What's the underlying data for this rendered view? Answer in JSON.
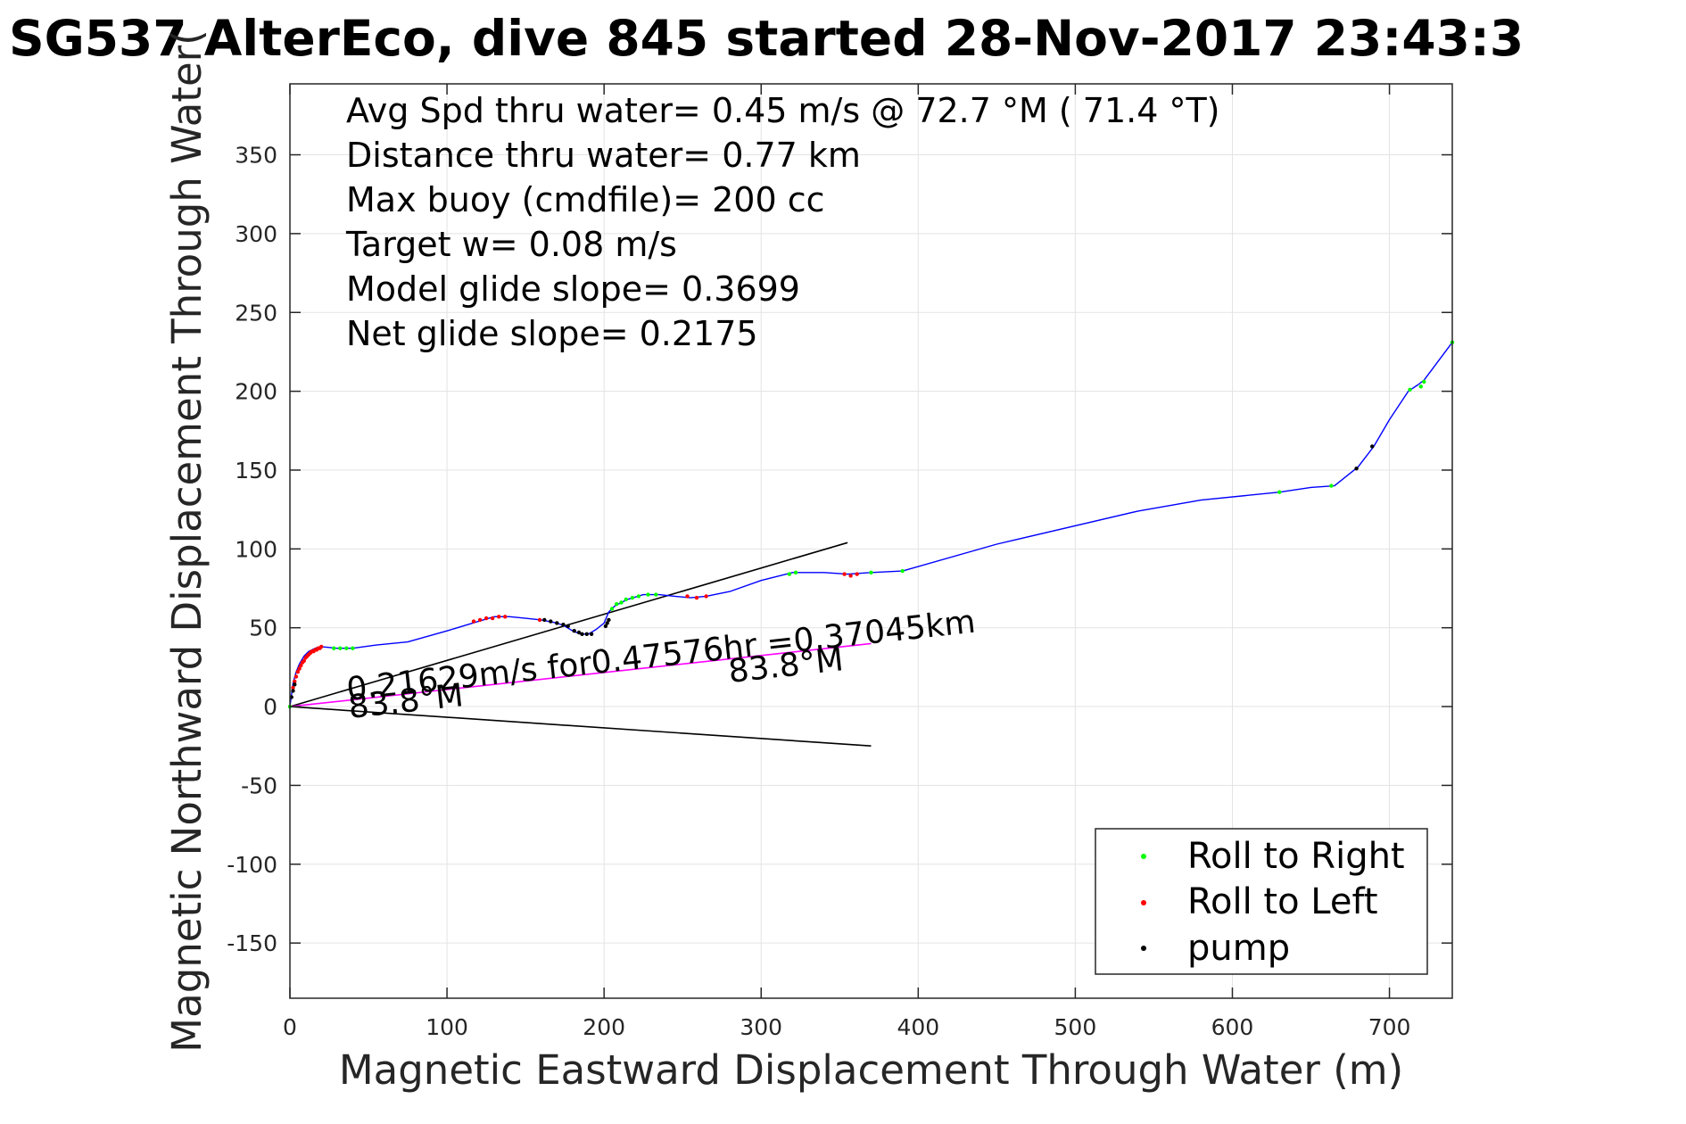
{
  "chart_data": {
    "type": "line",
    "title": "SG537 AlterEco, dive 845 started 28-Nov-2017 23:43:3",
    "xlabel": "Magnetic Eastward Displacement Through Water (m)",
    "ylabel": "Magnetic Northward Displacement Through Water(",
    "xlim": [
      0,
      740
    ],
    "ylim": [
      -185,
      395
    ],
    "xticks": [
      "0",
      "100",
      "200",
      "300",
      "400",
      "500",
      "600",
      "700"
    ],
    "xtick_values": [
      0,
      100,
      200,
      300,
      400,
      500,
      600,
      700
    ],
    "yticks": [
      "-150",
      "-100",
      "-50",
      "0",
      "50",
      "100",
      "150",
      "200",
      "250",
      "300",
      "350"
    ],
    "ytick_values": [
      -150,
      -100,
      -50,
      0,
      50,
      100,
      150,
      200,
      250,
      300,
      350
    ],
    "grid": true,
    "info_lines": [
      "Avg Spd thru water=  0.45 m/s @  72.7 °M ( 71.4 °T)",
      "Distance thru water=  0.77 km",
      "Max buoy (cmdfile)= 200 cc",
      "Target w= 0.08 m/s",
      "Model glide slope= 0.3699",
      "Net glide slope= 0.2175"
    ],
    "annotations": {
      "current_speed": "0.21629m/s for0.47576hr =0.37045km",
      "heading_a": "83.8°M",
      "heading_b": "83.8°M"
    },
    "legend": {
      "placement": "bottom-right",
      "entries": [
        {
          "label": "Roll to Right",
          "color": "#00ff00"
        },
        {
          "label": "Roll to Left",
          "color": "#ff0000"
        },
        {
          "label": "pump",
          "color": "#000000"
        }
      ]
    },
    "colors": {
      "track": "#0000ff",
      "current": "#ff00ff",
      "heading_lines": "#000000",
      "grid": "#e3e3e3",
      "axis": "#262626"
    },
    "series": [
      {
        "name": "track",
        "x": [
          0,
          2,
          4,
          6,
          9,
          12,
          16,
          20,
          30,
          40,
          55,
          75,
          100,
          120,
          130,
          140,
          150,
          160,
          170,
          175,
          180,
          185,
          190,
          195,
          200,
          203,
          207,
          215,
          225,
          235,
          245,
          255,
          265,
          280,
          300,
          320,
          340,
          355,
          370,
          390,
          450,
          540,
          580,
          630,
          650,
          665,
          680,
          690,
          700,
          712,
          718,
          722,
          740
        ],
        "y": [
          0,
          15,
          22,
          27,
          32,
          35,
          37,
          38,
          37,
          37,
          39,
          41,
          48,
          54,
          57,
          57,
          56,
          55,
          53,
          51,
          48,
          46,
          46,
          49,
          53,
          60,
          64,
          68,
          71,
          71,
          70,
          69,
          70,
          73,
          80,
          85,
          85,
          84,
          85,
          86,
          103,
          124,
          131,
          136,
          139,
          140,
          152,
          165,
          182,
          200,
          204,
          207,
          231
        ]
      },
      {
        "name": "Roll to Right",
        "x": [
          0,
          28,
          32,
          36,
          40,
          205,
          208,
          211,
          214,
          218,
          222,
          228,
          233,
          318,
          322,
          370,
          390,
          630,
          663,
          713,
          720,
          722,
          740
        ],
        "y": [
          0,
          37,
          37,
          37,
          37,
          62,
          65,
          66,
          68,
          69,
          70,
          71,
          71,
          84,
          85,
          85,
          86,
          136,
          140,
          201,
          203,
          206,
          231
        ]
      },
      {
        "name": "Roll to Left",
        "x": [
          2,
          3,
          4,
          5,
          6,
          7,
          8,
          9,
          10,
          11,
          12,
          13,
          14,
          15,
          16,
          17,
          18,
          19,
          20,
          117,
          121,
          125,
          129,
          133,
          137,
          159,
          253,
          259,
          265,
          353,
          357,
          361
        ],
        "y": [
          12,
          16,
          19,
          22,
          24,
          26,
          28,
          29,
          31,
          32,
          33,
          34,
          35,
          35,
          36,
          36,
          37,
          37,
          38,
          54,
          55,
          56,
          56,
          57,
          57,
          55,
          70,
          69,
          70,
          84,
          83,
          84
        ]
      },
      {
        "name": "pump",
        "x": [
          1,
          2,
          3,
          162,
          166,
          170,
          174,
          177,
          181,
          184,
          186,
          189,
          192,
          201,
          202,
          203,
          679,
          689
        ],
        "y": [
          6,
          10,
          14,
          55,
          54,
          53,
          52,
          51,
          48,
          47,
          46,
          46,
          46,
          51,
          53,
          55,
          151,
          165
        ]
      },
      {
        "name": "current",
        "x": [
          0,
          370
        ],
        "y": [
          0,
          40
        ]
      },
      {
        "name": "heading-upper",
        "x": [
          0,
          355
        ],
        "y": [
          0,
          104
        ]
      },
      {
        "name": "heading-lower",
        "x": [
          0,
          370
        ],
        "y": [
          0,
          -25
        ]
      }
    ]
  }
}
